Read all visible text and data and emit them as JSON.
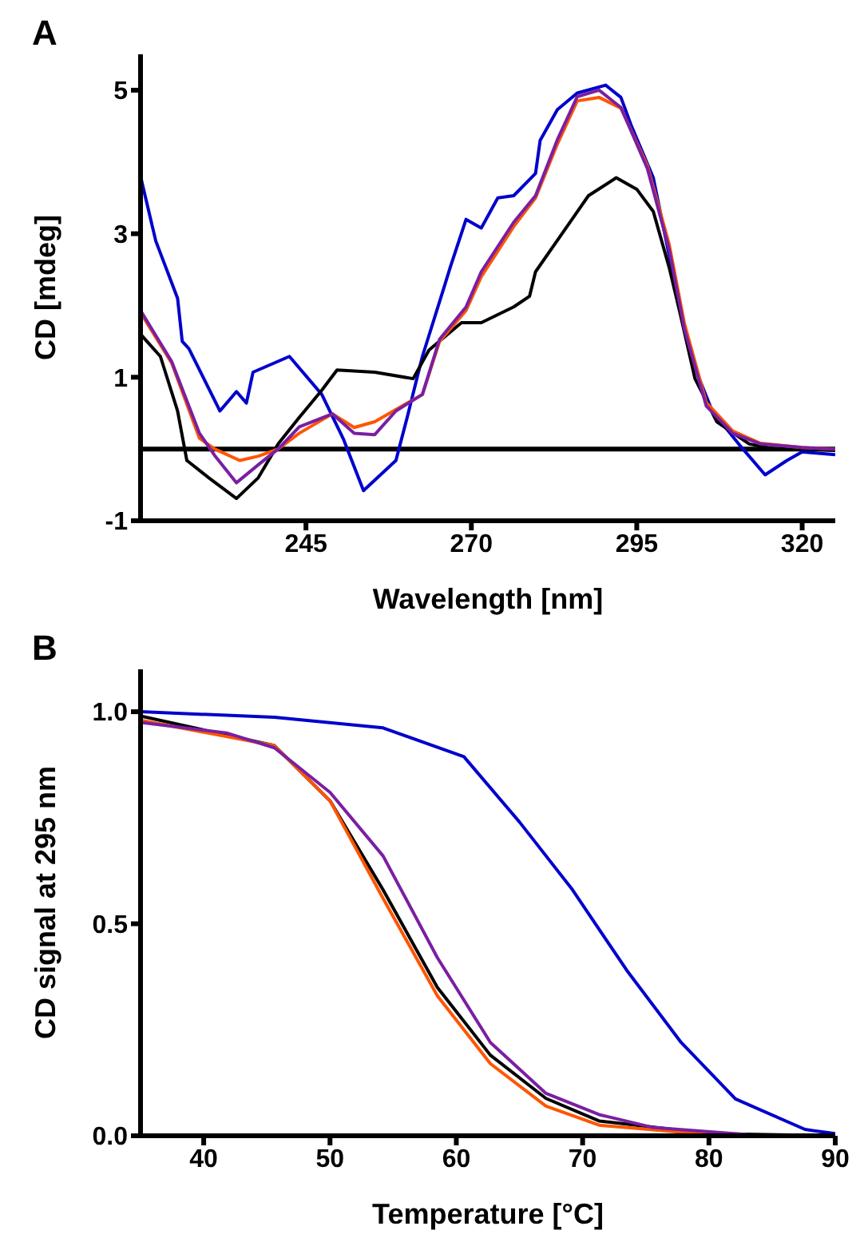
{
  "chart_data": [
    {
      "type": "line",
      "title": "A",
      "xlabel": "Wavelength [nm]",
      "ylabel": "CD [mdeg]",
      "xlim": [
        220,
        325
      ],
      "ylim": [
        -1,
        5.5
      ],
      "xticks": [
        245,
        270,
        295,
        320
      ],
      "yticks": [
        -1,
        1,
        3,
        5
      ],
      "line_style": "solid",
      "ref_lines": [
        {
          "axis": "y",
          "value": 0,
          "color": "#000000"
        }
      ],
      "series": [
        {
          "color": "#0000cc",
          "x": [
            220,
            222.3,
            225.6,
            226.3,
            227.3,
            232,
            234.5,
            236,
            237,
            242.5,
            247.4,
            250.7,
            253.7,
            258.6,
            260.3,
            262.6,
            266,
            266.8,
            269.2,
            271.5,
            274,
            276.4,
            279.7,
            280.4,
            283,
            286,
            290.3,
            292.6,
            294.2,
            297.5,
            300.6,
            301.5,
            303.8,
            306.4,
            310.4,
            314.4,
            317.7,
            320,
            325
          ],
          "values": [
            3.8,
            2.9,
            2.1,
            1.5,
            1.4,
            0.53,
            0.8,
            0.64,
            1.07,
            1.29,
            0.76,
            0.13,
            -0.58,
            -0.16,
            0.44,
            1.29,
            2.29,
            2.53,
            3.2,
            3.08,
            3.5,
            3.53,
            3.84,
            4.3,
            4.73,
            4.96,
            5.07,
            4.9,
            4.5,
            3.78,
            2.38,
            1.98,
            1.13,
            0.53,
            0.07,
            -0.36,
            -0.16,
            -0.04,
            -0.08
          ]
        },
        {
          "color": "#000000",
          "x": [
            220,
            223,
            225.6,
            227,
            230.3,
            234.5,
            237.8,
            240.8,
            244,
            247.4,
            249.7,
            255.4,
            261.2,
            263.6,
            268.5,
            271.5,
            276.4,
            278.8,
            279.7,
            283.7,
            287.7,
            291.9,
            295,
            297.5,
            299.9,
            301.5,
            303.8,
            307.1,
            312,
            316,
            320,
            325
          ],
          "values": [
            1.6,
            1.29,
            0.53,
            -0.16,
            -0.4,
            -0.69,
            -0.4,
            0.07,
            0.44,
            0.82,
            1.1,
            1.07,
            0.98,
            1.38,
            1.76,
            1.76,
            1.98,
            2.13,
            2.47,
            3.0,
            3.53,
            3.78,
            3.62,
            3.31,
            2.53,
            1.91,
            0.98,
            0.38,
            0.07,
            0,
            0,
            -0.02
          ]
        },
        {
          "color": "#ff5500",
          "x": [
            220,
            224.7,
            228.9,
            231.2,
            235,
            237.8,
            240.8,
            244,
            249,
            252.3,
            255.4,
            258.6,
            262.6,
            265.2,
            269.2,
            271.5,
            276.4,
            279.7,
            283,
            286,
            289.3,
            292.6,
            296.6,
            299.9,
            302.2,
            305.5,
            309.5,
            313.7,
            320,
            325
          ],
          "values": [
            1.9,
            1.2,
            0.15,
            0,
            -0.16,
            -0.1,
            0,
            0.22,
            0.49,
            0.3,
            0.38,
            0.55,
            0.76,
            1.5,
            1.93,
            2.4,
            3.1,
            3.5,
            4.25,
            4.85,
            4.9,
            4.75,
            3.95,
            2.85,
            1.75,
            0.65,
            0.25,
            0.08,
            0.02,
            0
          ]
        },
        {
          "color": "#7a1fa2",
          "x": [
            220,
            224.7,
            228.9,
            231.2,
            234.5,
            237.8,
            240.8,
            244,
            249,
            252.3,
            255.4,
            258.6,
            262.6,
            265.2,
            269.2,
            271.5,
            276.4,
            279.7,
            283,
            286,
            289.3,
            292.6,
            296.6,
            299.9,
            302.2,
            305.5,
            309.5,
            313.7,
            320,
            325
          ],
          "values": [
            1.93,
            1.22,
            0.22,
            -0.09,
            -0.47,
            -0.22,
            0,
            0.31,
            0.49,
            0.22,
            0.2,
            0.53,
            0.76,
            1.53,
            1.98,
            2.47,
            3.16,
            3.53,
            4.31,
            4.91,
            5,
            4.76,
            3.91,
            2.78,
            1.67,
            0.6,
            0.22,
            0.07,
            0.02,
            0
          ]
        }
      ]
    },
    {
      "type": "line",
      "title": "B",
      "xlabel": "Temperature [°C]",
      "ylabel": "CD signal at 295 nm",
      "xlim": [
        35,
        90
      ],
      "ylim": [
        0,
        1.1
      ],
      "xticks": [
        40,
        50,
        60,
        70,
        80,
        90
      ],
      "yticks": [
        {
          "value": 0,
          "label": "0.0"
        },
        0.5,
        {
          "value": 1,
          "label": "1.0"
        }
      ],
      "line_style": "solid",
      "series": [
        {
          "color": "#0000cc",
          "x": [
            35,
            45.6,
            54.2,
            60.6,
            65,
            69.2,
            73.5,
            77.8,
            82.1,
            87.6,
            90
          ],
          "values": [
            1.0,
            0.987,
            0.962,
            0.894,
            0.74,
            0.58,
            0.39,
            0.22,
            0.087,
            0.015,
            0.005
          ]
        },
        {
          "color": "#000000",
          "x": [
            35,
            45.6,
            50,
            54.2,
            58.5,
            62.7,
            67.1,
            71.3,
            80,
            90
          ],
          "values": [
            0.99,
            0.92,
            0.79,
            0.58,
            0.35,
            0.19,
            0.088,
            0.035,
            0.005,
            0
          ]
        },
        {
          "color": "#ff5500",
          "x": [
            35,
            45.6,
            50,
            54.2,
            58.5,
            62.7,
            67.1,
            71.3,
            80,
            90
          ],
          "values": [
            0.98,
            0.92,
            0.79,
            0.56,
            0.33,
            0.17,
            0.07,
            0.025,
            0.003,
            0
          ]
        },
        {
          "color": "#7a1fa2",
          "x": [
            35,
            41.8,
            45.6,
            50,
            54.2,
            58.5,
            62.7,
            67.1,
            71.3,
            75.5,
            83
          ],
          "values": [
            0.975,
            0.95,
            0.915,
            0.81,
            0.66,
            0.42,
            0.22,
            0.1,
            0.05,
            0.02,
            0.003
          ]
        }
      ]
    }
  ]
}
